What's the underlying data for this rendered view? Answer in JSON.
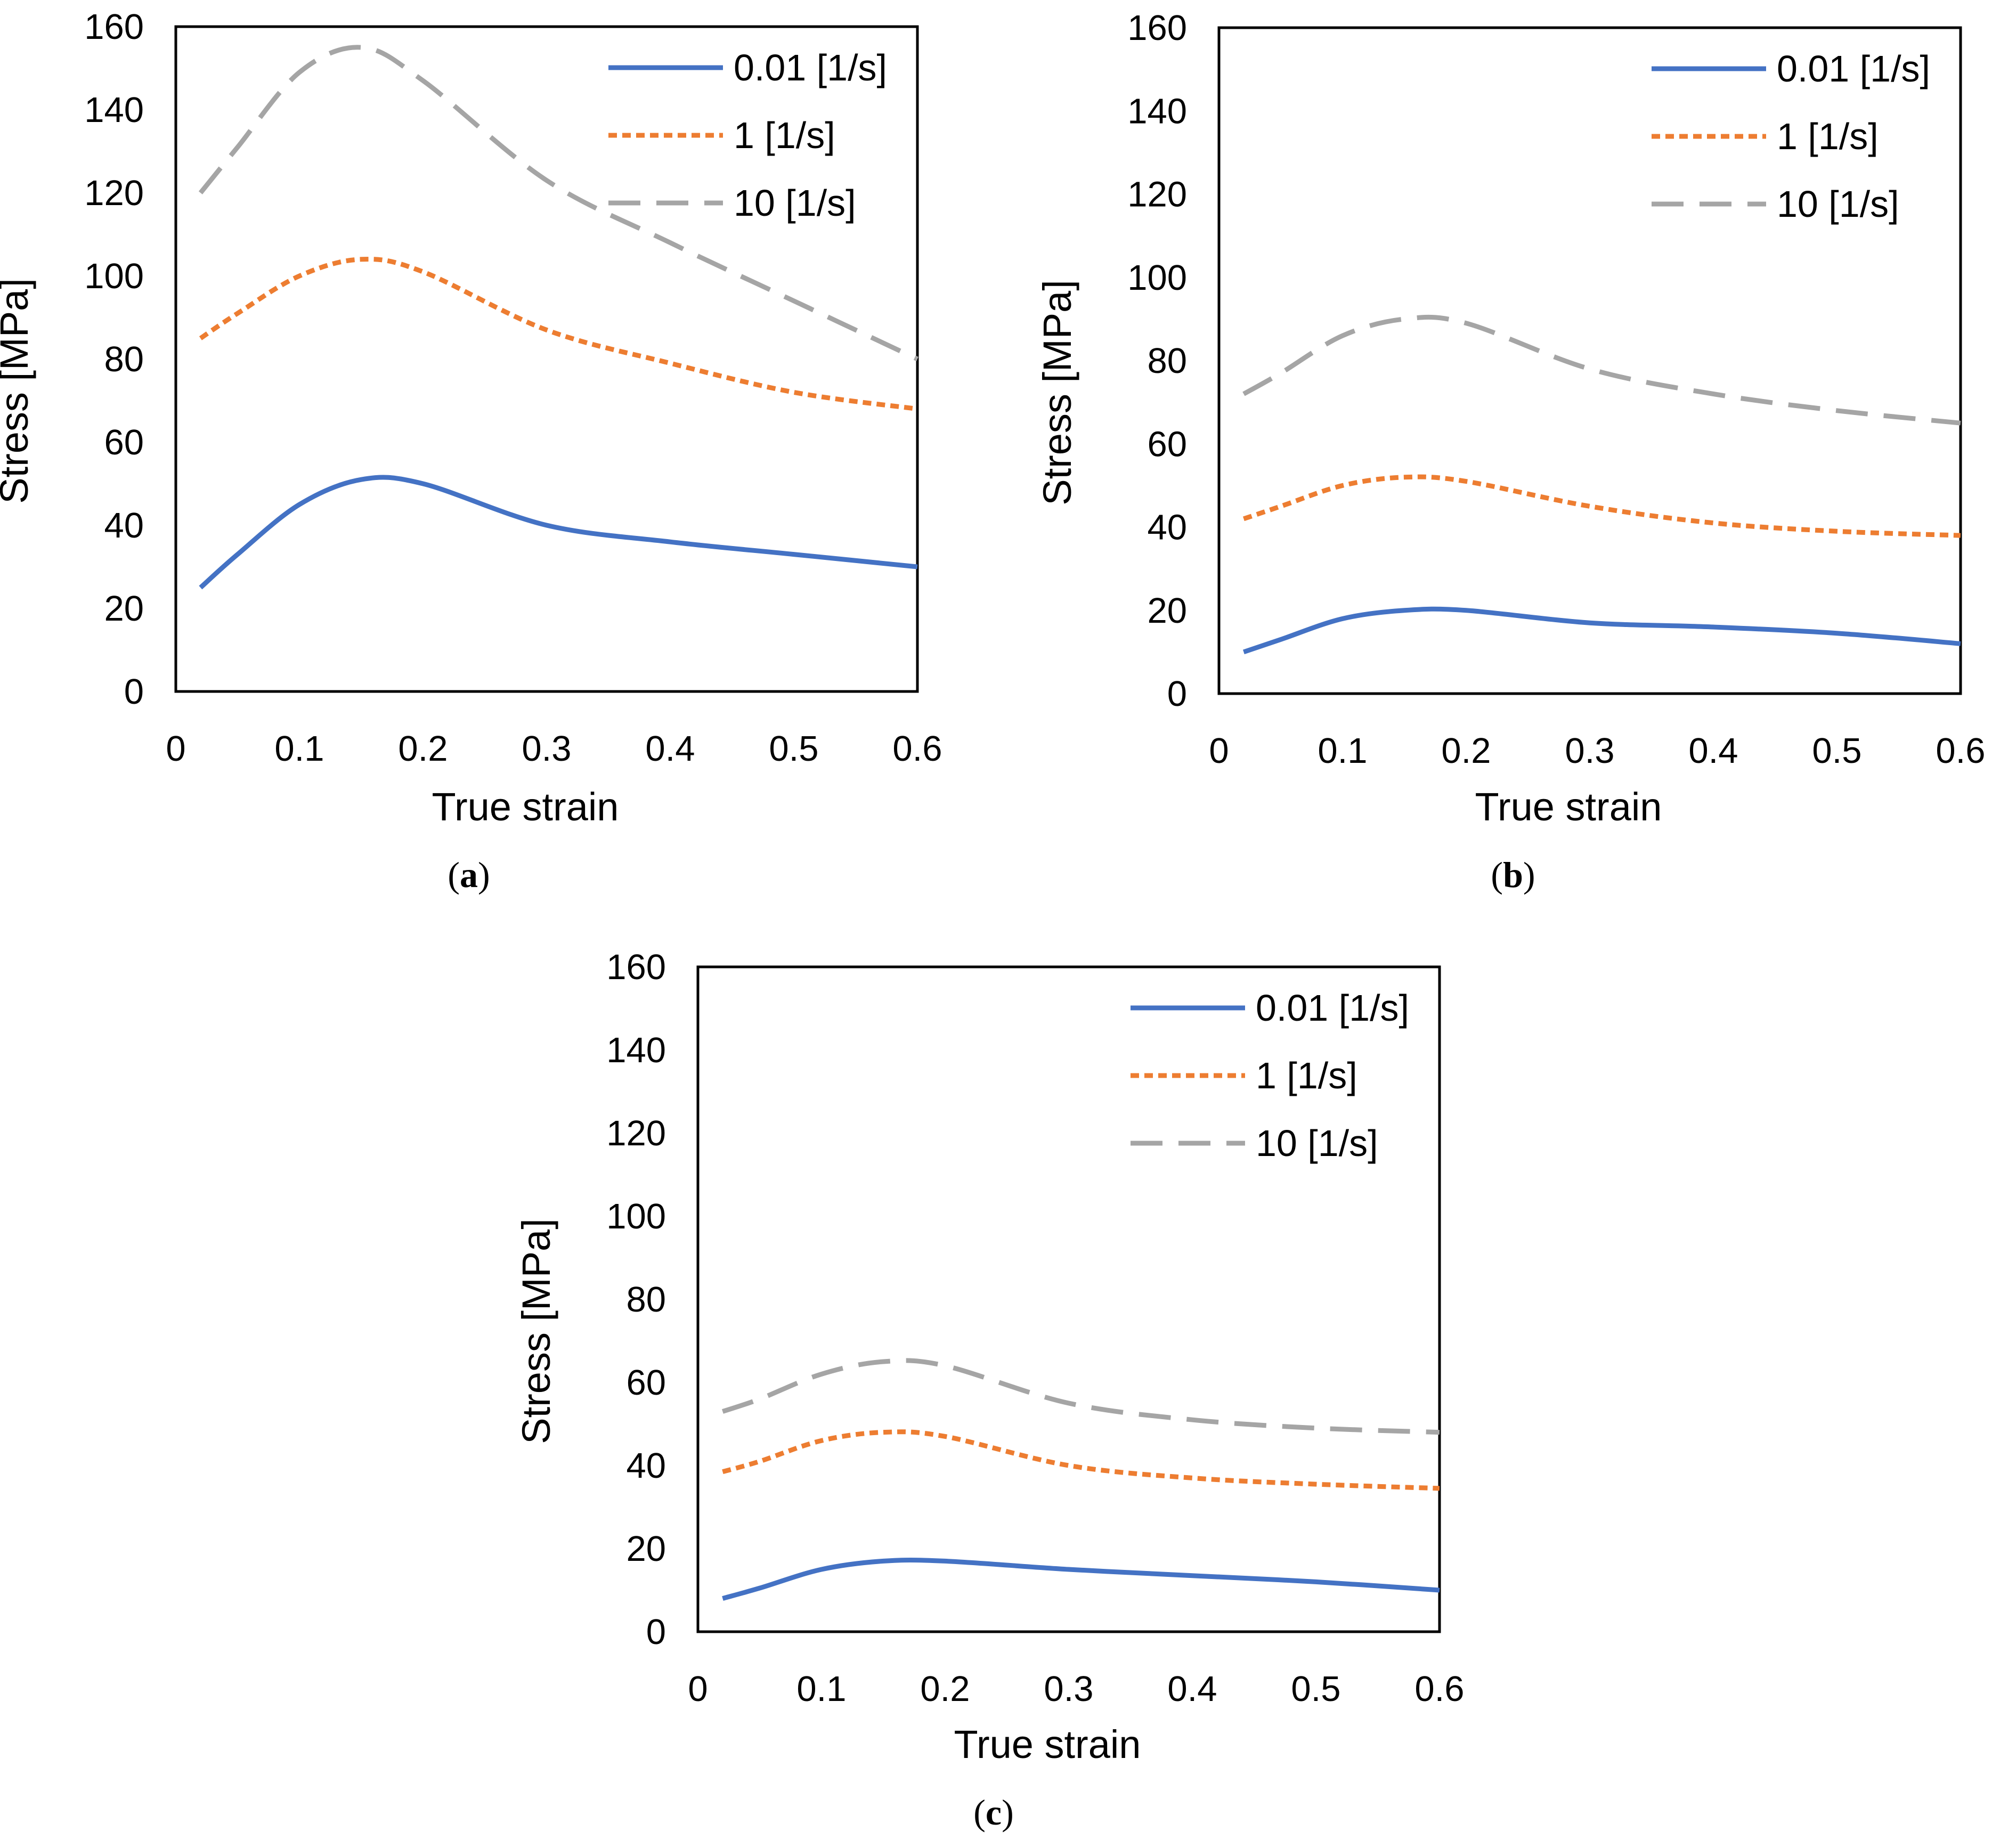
{
  "colors": {
    "series_001": "#4472C4",
    "series_1": "#ED7D31",
    "series_10": "#A5A5A5",
    "axis": "#000000"
  },
  "chart_data": [
    {
      "type": "line",
      "panel_label": "a",
      "xlabel": "True strain",
      "ylabel": "Stress [MPa]",
      "xlim": [
        0,
        0.6
      ],
      "ylim": [
        0,
        160
      ],
      "xticks": [
        "0",
        "0.1",
        "0.2",
        "0.3",
        "0.4",
        "0.5",
        "0.6"
      ],
      "yticks": [
        "0",
        "20",
        "40",
        "60",
        "80",
        "100",
        "120",
        "140",
        "160"
      ],
      "legend_position": "top-right",
      "grid": false,
      "series": [
        {
          "name": "0.01 [1/s]",
          "style": "solid",
          "x": [
            0.02,
            0.05,
            0.1,
            0.15,
            0.2,
            0.3,
            0.4,
            0.5,
            0.6
          ],
          "y": [
            25,
            33,
            45,
            51,
            50,
            40,
            36,
            33,
            30
          ]
        },
        {
          "name": "1 [1/s]",
          "style": "dotted",
          "x": [
            0.02,
            0.05,
            0.1,
            0.15,
            0.2,
            0.3,
            0.4,
            0.5,
            0.6
          ],
          "y": [
            85,
            91,
            100,
            104,
            101,
            87,
            79,
            72,
            68
          ]
        },
        {
          "name": "10 [1/s]",
          "style": "dashed",
          "x": [
            0.02,
            0.05,
            0.1,
            0.15,
            0.2,
            0.3,
            0.4,
            0.5,
            0.6
          ],
          "y": [
            120,
            131,
            149,
            155,
            147,
            123,
            108,
            94,
            80
          ]
        }
      ]
    },
    {
      "type": "line",
      "panel_label": "b",
      "xlabel": "True strain",
      "ylabel": "Stress [MPa]",
      "xlim": [
        0,
        0.6
      ],
      "ylim": [
        0,
        160
      ],
      "xticks": [
        "0",
        "0.1",
        "0.2",
        "0.3",
        "0.4",
        "0.5",
        "0.6"
      ],
      "yticks": [
        "0",
        "20",
        "40",
        "60",
        "80",
        "100",
        "120",
        "140",
        "160"
      ],
      "legend_position": "top-right",
      "grid": false,
      "series": [
        {
          "name": "0.01 [1/s]",
          "style": "solid",
          "x": [
            0.02,
            0.05,
            0.1,
            0.15,
            0.2,
            0.3,
            0.4,
            0.5,
            0.6
          ],
          "y": [
            10,
            13,
            18,
            20,
            20,
            17,
            16,
            14.5,
            12
          ]
        },
        {
          "name": "1 [1/s]",
          "style": "dotted",
          "x": [
            0.02,
            0.05,
            0.1,
            0.15,
            0.2,
            0.3,
            0.4,
            0.5,
            0.6
          ],
          "y": [
            42,
            45,
            50,
            52,
            51,
            45,
            41,
            39,
            38
          ]
        },
        {
          "name": "10 [1/s]",
          "style": "dashed",
          "x": [
            0.02,
            0.05,
            0.1,
            0.15,
            0.2,
            0.3,
            0.4,
            0.5,
            0.6
          ],
          "y": [
            72,
            77,
            86,
            90,
            89,
            78,
            72,
            68,
            65
          ]
        }
      ]
    },
    {
      "type": "line",
      "panel_label": "c",
      "xlabel": "True strain",
      "ylabel": "Stress [MPa]",
      "xlim": [
        0,
        0.6
      ],
      "ylim": [
        0,
        160
      ],
      "xticks": [
        "0",
        "0.1",
        "0.2",
        "0.3",
        "0.4",
        "0.5",
        "0.6"
      ],
      "yticks": [
        "0",
        "20",
        "40",
        "60",
        "80",
        "100",
        "120",
        "140",
        "160"
      ],
      "legend_position": "top-right",
      "grid": false,
      "series": [
        {
          "name": "0.01 [1/s]",
          "style": "solid",
          "x": [
            0.02,
            0.05,
            0.1,
            0.15,
            0.2,
            0.3,
            0.4,
            0.5,
            0.6
          ],
          "y": [
            8,
            10.5,
            15,
            17,
            17,
            15,
            13.5,
            12,
            10
          ]
        },
        {
          "name": "1 [1/s]",
          "style": "dotted",
          "x": [
            0.02,
            0.05,
            0.1,
            0.15,
            0.2,
            0.3,
            0.4,
            0.5,
            0.6
          ],
          "y": [
            38.5,
            41,
            46,
            48,
            47,
            40,
            37,
            35.5,
            34.5
          ]
        },
        {
          "name": "10 [1/s]",
          "style": "dashed",
          "x": [
            0.02,
            0.05,
            0.1,
            0.15,
            0.2,
            0.3,
            0.4,
            0.5,
            0.6
          ],
          "y": [
            53,
            56,
            62,
            65,
            64,
            55,
            51,
            49,
            48
          ]
        }
      ]
    }
  ]
}
